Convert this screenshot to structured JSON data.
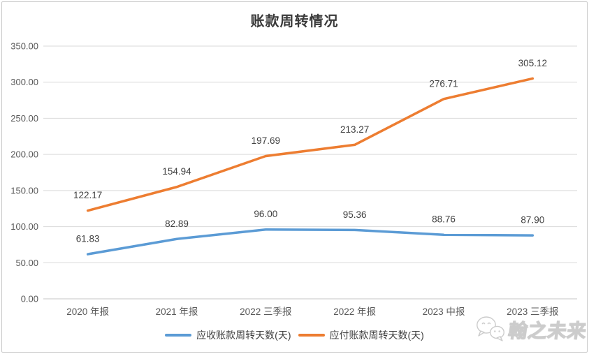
{
  "chart_data": {
    "type": "line",
    "title": "账款周转情况",
    "categories": [
      "2020 年报",
      "2021 年报",
      "2022 三季报",
      "2022 年报",
      "2023 中报",
      "2023 三季报"
    ],
    "series": [
      {
        "name": "应收账款周转天数(天)",
        "color": "#5B9BD5",
        "values": [
          61.83,
          82.89,
          96.0,
          95.36,
          88.76,
          87.9
        ]
      },
      {
        "name": "应付账款周转天数(天)",
        "color": "#ED7D31",
        "values": [
          122.17,
          154.94,
          197.69,
          213.27,
          276.71,
          305.12
        ]
      }
    ],
    "xlabel": "",
    "ylabel": "",
    "ylim": [
      0,
      350
    ],
    "y_step": 50,
    "y_tick_decimals": 2,
    "grid": "horizontal",
    "legend_position": "bottom",
    "data_labels": true
  },
  "watermark": {
    "text": "翰之未来"
  },
  "colors": {
    "gridline": "#d9d9d9",
    "axis_text": "#595959",
    "data_label_text": "#404040",
    "title_text": "#3a3a3a",
    "frame_border": "#c9c9c9",
    "background": "#ffffff"
  }
}
